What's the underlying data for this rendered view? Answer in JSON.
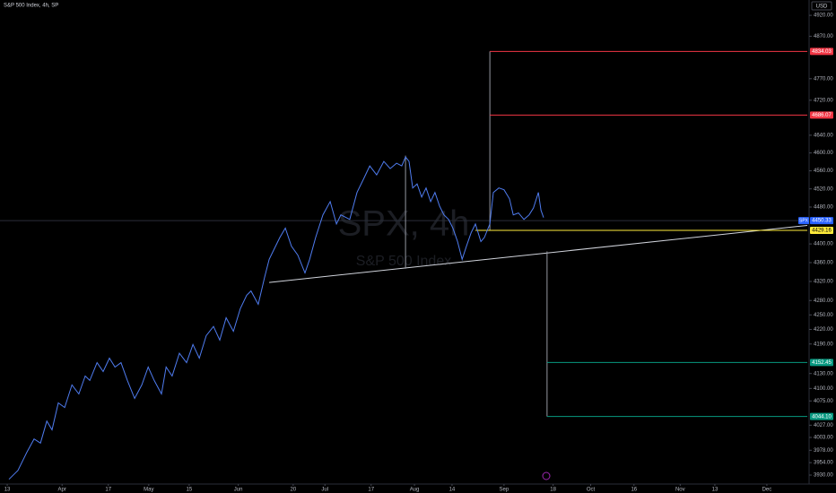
{
  "chart_data": {
    "type": "line",
    "title": "S&P 500 Index, 4h, SP",
    "watermark": "SPX, 4h",
    "watermark_subtitle": "S&P 500 Index",
    "currency": "USD",
    "symbol": "SPX",
    "log_scale": true,
    "color": "#4f7cf0",
    "x": [
      72.6,
      75.7,
      78.8,
      81.3,
      83.5,
      85.7,
      87.5,
      89.7,
      91.9,
      94.4,
      96.8,
      99.0,
      100.6,
      103.1,
      105.2,
      107.4,
      109.3,
      111.4,
      113.6,
      116.1,
      118.6,
      120.8,
      122.9,
      125.4,
      127.0,
      129.1,
      131.6,
      134.1,
      136.3,
      138.5,
      140.9,
      143.4,
      145.6,
      147.8,
      150.3,
      152.7,
      154.9,
      156.4,
      158.9,
      161.1,
      162.7,
      164.2,
      166.4,
      168.3,
      170.4,
      172.6,
      175.1,
      176.7,
      178.8,
      181.3,
      183.8,
      186.0,
      187.5,
      190.6,
      193.1,
      195.3,
      197.5,
      199.9,
      202.4,
      204.6,
      206.8,
      208.6,
      209.9,
      211.1,
      212.4,
      213.9,
      215.5,
      217.0,
      218.6,
      220.1,
      221.7,
      223.2,
      224.8,
      226.3,
      227.9,
      229.5,
      231.0,
      232.6,
      234.1,
      236.0,
      237.2,
      239.1,
      240.3,
      242.2,
      244.0,
      245.9,
      247.2,
      249.0,
      250.9,
      252.7,
      254.2,
      255.9,
      256.8,
      257.7
    ],
    "values": [
      3922,
      3939,
      3974,
      4000,
      3992,
      4035,
      4018,
      4071,
      4062,
      4107,
      4089,
      4125,
      4116,
      4152,
      4134,
      4161,
      4143,
      4152,
      4116,
      4080,
      4107,
      4143,
      4116,
      4089,
      4143,
      4125,
      4171,
      4152,
      4189,
      4161,
      4207,
      4226,
      4198,
      4244,
      4216,
      4263,
      4291,
      4300,
      4272,
      4329,
      4367,
      4386,
      4414,
      4434,
      4395,
      4376,
      4338,
      4367,
      4414,
      4463,
      4492,
      4443,
      4463,
      4453,
      4512,
      4541,
      4571,
      4551,
      4581,
      4565,
      4577,
      4571,
      4591,
      4581,
      4522,
      4531,
      4502,
      4522,
      4492,
      4512,
      4482,
      4463,
      4453,
      4434,
      4405,
      4367,
      4395,
      4424,
      4443,
      4405,
      4414,
      4443,
      4512,
      4522,
      4518,
      4498,
      4463,
      4467,
      4453,
      4463,
      4478,
      4512,
      4473,
      4457
    ],
    "xlim": [
      69.5,
      349
    ],
    "ylim": [
      3918,
      4957
    ],
    "xticks": [
      {
        "value": 72,
        "label": "13"
      },
      {
        "value": 91,
        "label": "Apr"
      },
      {
        "value": 107,
        "label": "17"
      },
      {
        "value": 121,
        "label": "May"
      },
      {
        "value": 135,
        "label": "15"
      },
      {
        "value": 152,
        "label": "Jun"
      },
      {
        "value": 171,
        "label": "20"
      },
      {
        "value": 182,
        "label": "Jul"
      },
      {
        "value": 198,
        "label": "17"
      },
      {
        "value": 213,
        "label": "Aug"
      },
      {
        "value": 226,
        "label": "14"
      },
      {
        "value": 244,
        "label": "Sep"
      },
      {
        "value": 261,
        "label": "18"
      },
      {
        "value": 274,
        "label": "Oct"
      },
      {
        "value": 289,
        "label": "16"
      },
      {
        "value": 305,
        "label": "Nov"
      },
      {
        "value": 317,
        "label": "13"
      },
      {
        "value": 335,
        "label": "Dec"
      }
    ],
    "yticks": [
      {
        "value": 4920,
        "label": "4920.00"
      },
      {
        "value": 4870,
        "label": "4870.00"
      },
      {
        "value": 4770,
        "label": "4770.00"
      },
      {
        "value": 4720,
        "label": "4720.00"
      },
      {
        "value": 4640,
        "label": "4640.00"
      },
      {
        "value": 4600,
        "label": "4600.00"
      },
      {
        "value": 4560,
        "label": "4560.00"
      },
      {
        "value": 4520,
        "label": "4520.00"
      },
      {
        "value": 4480,
        "label": "4480.00"
      },
      {
        "value": 4400,
        "label": "4400.00"
      },
      {
        "value": 4360,
        "label": "4360.00"
      },
      {
        "value": 4320,
        "label": "4320.00"
      },
      {
        "value": 4280,
        "label": "4280.00"
      },
      {
        "value": 4250,
        "label": "4250.00"
      },
      {
        "value": 4220,
        "label": "4220.00"
      },
      {
        "value": 4190,
        "label": "4190.00"
      },
      {
        "value": 4130,
        "label": "4130.00"
      },
      {
        "value": 4100,
        "label": "4100.00"
      },
      {
        "value": 4075,
        "label": "4075.00"
      },
      {
        "value": 4027,
        "label": "4027.00"
      },
      {
        "value": 4003,
        "label": "4003.00"
      },
      {
        "value": 3978,
        "label": "3978.00"
      },
      {
        "value": 3954,
        "label": "3954.00"
      },
      {
        "value": 3930,
        "label": "3930.00"
      }
    ],
    "last_price": {
      "value": 4450.33,
      "label": "4450.33",
      "color": "#2962ff"
    },
    "levels": [
      {
        "value": 4834.03,
        "label": "4834.03",
        "color": "#f23645",
        "from": 239.1
      },
      {
        "value": 4686.07,
        "label": "4686.07",
        "color": "#f23645",
        "from": 239.1
      },
      {
        "value": 4429.16,
        "label": "4429.16",
        "color": "#ffeb3b",
        "from": 234.1
      },
      {
        "value": 4152.45,
        "label": "4152.45",
        "color": "#089981",
        "from": 258.9
      },
      {
        "value": 4044.1,
        "label": "4044.10",
        "color": "#089981",
        "from": 258.9
      }
    ],
    "trendline": {
      "x": [
        162.7,
        349
      ],
      "values": [
        4318,
        4440
      ]
    },
    "neckline_height": {
      "x": 209.9,
      "values": [
        4594,
        4347
      ]
    },
    "target_up": {
      "x": 239.1,
      "values": [
        4429.16,
        4834.03
      ]
    },
    "target_down": {
      "x": 258.9,
      "values": [
        4384,
        4044.1
      ]
    }
  }
}
